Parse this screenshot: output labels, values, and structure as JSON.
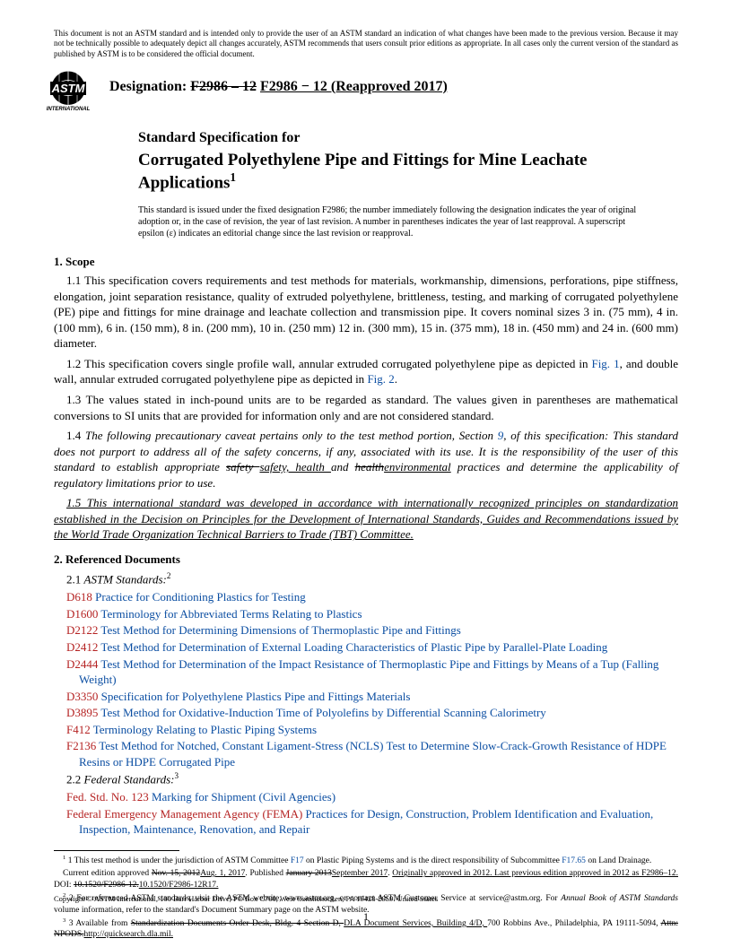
{
  "disclaimer": "This document is not an ASTM standard and is intended only to provide the user of an ASTM standard an indication of what changes have been made to the previous version. Because it may not be technically possible to adequately depict all changes accurately, ASTM recommends that users consult prior editions as appropriate. In all cases only the current version of the standard as published by ASTM is to be considered the official document.",
  "logo_main": "ASTM",
  "logo_sub": "INTERNATIONAL",
  "designation_label": "Designation:",
  "designation_old": "F2986 – 12",
  "designation_new": "F2986 − 12 (Reapproved 2017)",
  "title_pre": "Standard Specification for",
  "title_main": "Corrugated Polyethylene Pipe and Fittings for Mine Leachate Applications",
  "title_sup": "1",
  "issuance": "This standard is issued under the fixed designation F2986; the number immediately following the designation indicates the year of original adoption or, in the case of revision, the year of last revision. A number in parentheses indicates the year of last reapproval. A superscript epsilon (ε) indicates an editorial change since the last revision or reapproval.",
  "s1_head": "1.  Scope",
  "s1_1": "1.1 This specification covers requirements and test methods for materials, workmanship, dimensions, perforations, pipe stiffness, elongation, joint separation resistance, quality of extruded polyethylene, brittleness, testing, and marking of corrugated polyethylene (PE) pipe and fittings for mine drainage and leachate collection and transmission pipe. It covers nominal sizes 3 in. (75 mm), 4 in. (100 mm), 6 in. (150 mm), 8 in. (200 mm), 10 in. (250 mm) 12 in. (300 mm), 15 in. (375 mm), 18 in. (450 mm) and 24 in. (600 mm) diameter.",
  "s1_2a": "1.2  This specification covers single profile wall, annular extruded corrugated polyethylene pipe as depicted in ",
  "s1_2_fig1": "Fig. 1",
  "s1_2b": ", and double wall, annular extruded corrugated polyethylene pipe as depicted in ",
  "s1_2_fig2": "Fig. 2",
  "s1_2c": ".",
  "s1_3": "1.3 The values stated in inch-pound units are to be regarded as standard. The values given in parentheses are mathematical conversions to SI units that are provided for information only and are not considered standard.",
  "s1_4a": "1.4 ",
  "s1_4b": "The following precautionary caveat pertains only to the test method portion, Section ",
  "s1_4_sec": "9",
  "s1_4c": ", of this specification: This standard does not purport to address all of the safety concerns, if any, associated with its use. It is the responsibility of the user of this standard to establish appropriate ",
  "s1_4_old1": "safety ",
  "s1_4_new1": "safety, health ",
  "s1_4d": "and ",
  "s1_4_old2": "health",
  "s1_4_new2": "environmental",
  "s1_4e": " practices and determine the applicability of regulatory limitations prior to use.",
  "s1_5": "1.5 This international standard was developed in accordance with internationally recognized principles on standardization established in the Decision on Principles for the Development of International Standards, Guides and Recommendations issued by the World Trade Organization Technical Barriers to Trade (TBT) Committee.",
  "s2_head": "2.  Referenced Documents",
  "s2_1": "2.1  ",
  "s2_1b": "ASTM Standards:",
  "s2_1sup": "2",
  "refs": [
    {
      "code": "D618",
      "title": "Practice for Conditioning Plastics for Testing"
    },
    {
      "code": "D1600",
      "title": "Terminology for Abbreviated Terms Relating to Plastics"
    },
    {
      "code": "D2122",
      "title": "Test Method for Determining Dimensions of Thermoplastic Pipe and Fittings"
    },
    {
      "code": "D2412",
      "title": "Test Method for Determination of External Loading Characteristics of Plastic Pipe by Parallel-Plate Loading"
    },
    {
      "code": "D2444",
      "title": "Test Method for Determination of the Impact Resistance of Thermoplastic Pipe and Fittings by Means of a Tup (Falling Weight)"
    },
    {
      "code": "D3350",
      "title": "Specification for Polyethylene Plastics Pipe and Fittings Materials"
    },
    {
      "code": "D3895",
      "title": "Test Method for Oxidative-Induction Time of Polyolefins by Differential Scanning Calorimetry"
    },
    {
      "code": "F412",
      "title": "Terminology Relating to Plastic Piping Systems"
    },
    {
      "code": "F2136",
      "title": "Test Method for Notched, Constant Ligament-Stress (NCLS) Test to Determine Slow-Crack-Growth Resistance of HDPE Resins or HDPE Corrugated Pipe"
    }
  ],
  "s2_2": "2.2  ",
  "s2_2b": "Federal Standards:",
  "s2_2sup": "3",
  "fed_refs": [
    {
      "code": "Fed. Std. No. 123",
      "title": "Marking for Shipment (Civil Agencies)"
    },
    {
      "code": "Federal Emergency Management Agency (FEMA)",
      "title": "Practices for Design, Construction, Problem Identification and Evaluation, Inspection, Maintenance, Renovation, and Repair"
    }
  ],
  "fn1a": "1 This test method is under the jurisdiction of ASTM Committee ",
  "fn1_link1": "F17",
  "fn1b": " on Plastic Piping Systems and is the direct responsibility of Subcommittee ",
  "fn1_link2": "F17.65",
  "fn1c": " on Land Drainage.",
  "fn1d": "Current edition approved ",
  "fn1_old1": "Nov. 15, 2012",
  "fn1_new1": "Aug. 1, 2017",
  "fn1e": ". Published ",
  "fn1_old2": "January 2013",
  "fn1_new2": "September 2017",
  "fn1f": ". ",
  "fn1_new3": "Originally approved in 2012. Last previous edition approved in 2012 as F2986–12. ",
  "fn1g": "DOI: ",
  "fn1_old3": "10.1520/F2986-12.",
  "fn1_new4": "10.1520/F2986-12R17.",
  "fn2a": "2 For referenced ASTM standards, visit the ASTM website, www.astm.org, or contact ASTM Customer Service at service@astm.org. For ",
  "fn2b": "Annual Book of ASTM Standards",
  "fn2c": " volume information, refer to the standard's Document Summary page on the ASTM website.",
  "fn3a": "3 Available from ",
  "fn3_old": "Standardization Documents Order Desk, Bldg. 4 Section D, ",
  "fn3_new": "DLA Document Services, Building 4/D, ",
  "fn3b": "700 Robbins Ave., Philadelphia, PA 19111-5094, ",
  "fn3_old2": "Attn: NPODS.",
  "fn3_new2": "http://quicksearch.dla.mil.",
  "copyright": "Copyright © ASTM International, 100 Barr Harbor Drive, PO Box C700, West Conshohocken, PA 19428-2959. United States",
  "pagenum": "1"
}
